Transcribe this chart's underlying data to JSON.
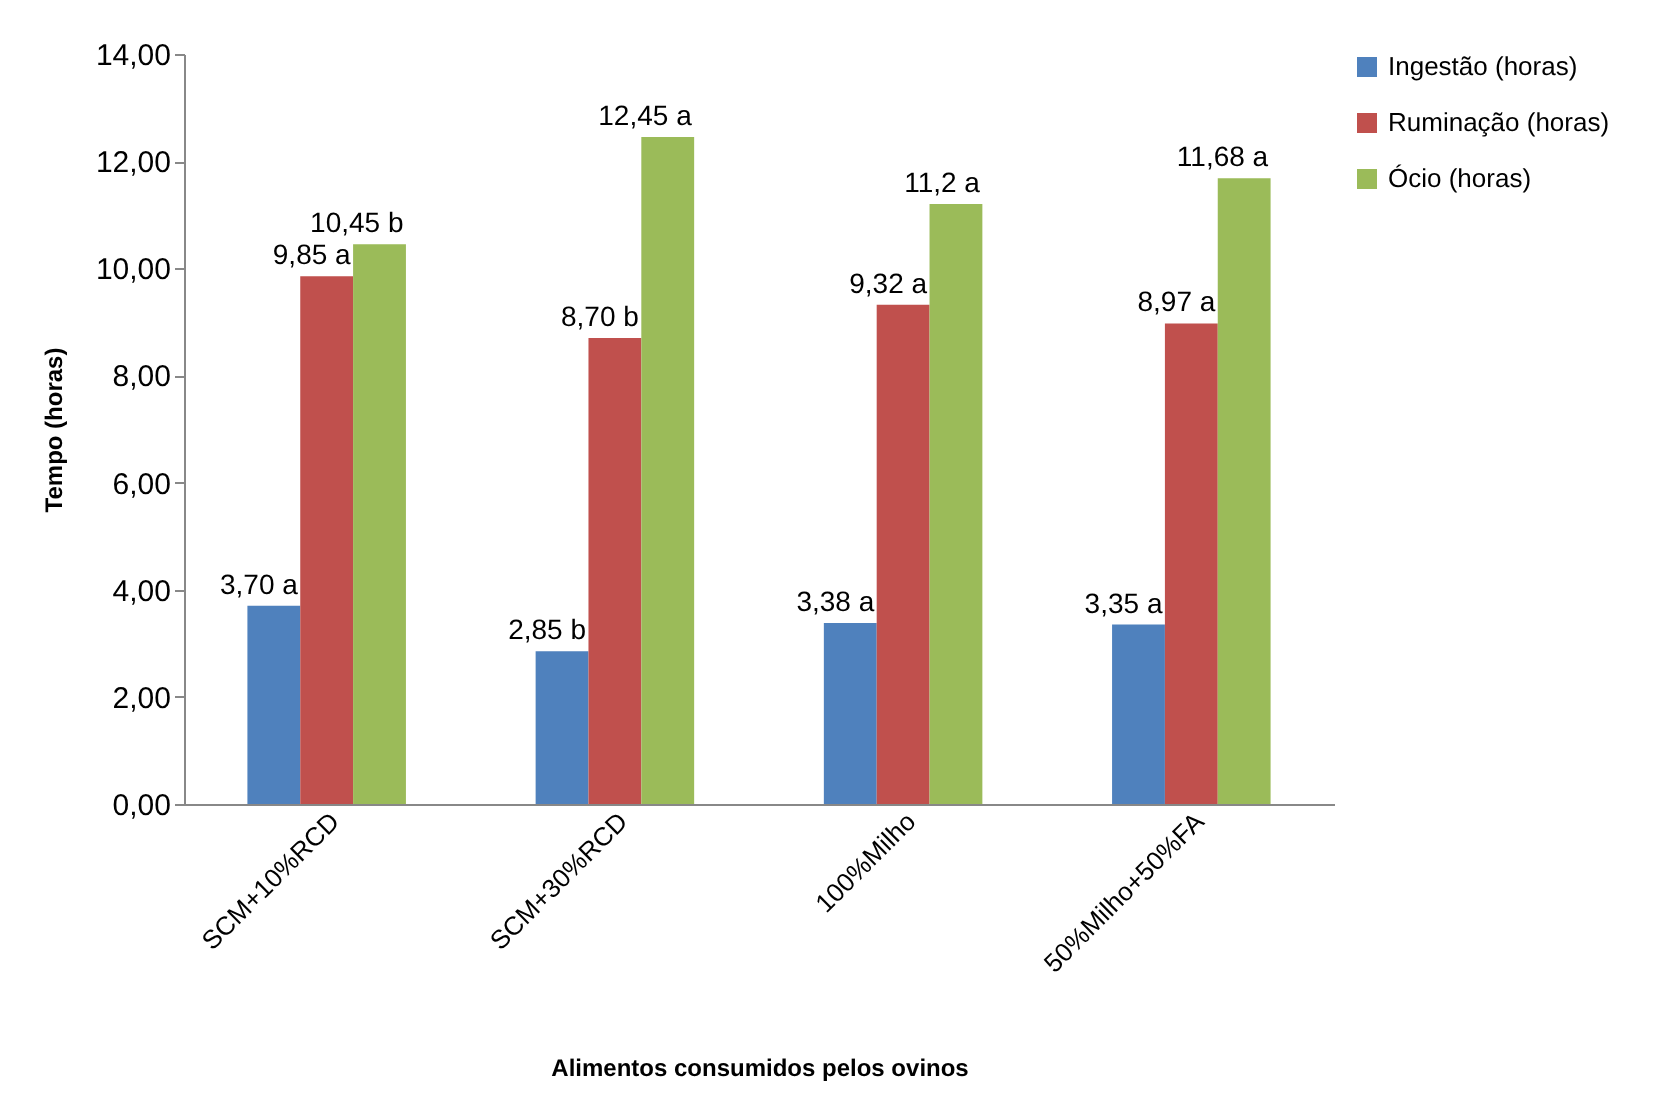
{
  "chart_data": {
    "type": "bar",
    "xlabel": "Alimentos  consumidos  pelos ovinos",
    "ylabel": "Tempo (horas)",
    "categories": [
      "SCM+10%RCD",
      "SCM+30%RCD",
      "100%Milho",
      "50%Milho+50%FA"
    ],
    "series": [
      {
        "name": "Ingestão (horas)",
        "color": "#4f81bd",
        "values": [
          3.7,
          2.85,
          3.38,
          3.35
        ],
        "value_labels": [
          "3,70 a",
          "2,85 b",
          "3,38 a",
          "3,35 a"
        ]
      },
      {
        "name": "Ruminação (horas)",
        "color": "#c0504d",
        "values": [
          9.85,
          8.7,
          9.32,
          8.97
        ],
        "value_labels": [
          "9,85 a",
          "8,70 b",
          "9,32 a",
          "8,97 a"
        ]
      },
      {
        "name": "Ócio (horas)",
        "color": "#9bbb59",
        "values": [
          10.45,
          12.45,
          11.2,
          11.68
        ],
        "value_labels": [
          "10,45 b",
          "12,45 a",
          "11,2 a",
          "11,68 a"
        ]
      }
    ],
    "ylim": [
      0,
      14
    ],
    "yticks": [
      {
        "value": 0,
        "label": "0,00"
      },
      {
        "value": 2,
        "label": "2,00"
      },
      {
        "value": 4,
        "label": "4,00"
      },
      {
        "value": 6,
        "label": "6,00"
      },
      {
        "value": 8,
        "label": "8,00"
      },
      {
        "value": 10,
        "label": "10,00"
      },
      {
        "value": 12,
        "label": "12,00"
      },
      {
        "value": 14,
        "label": "14,00"
      }
    ],
    "grid": false,
    "legend": "right"
  }
}
